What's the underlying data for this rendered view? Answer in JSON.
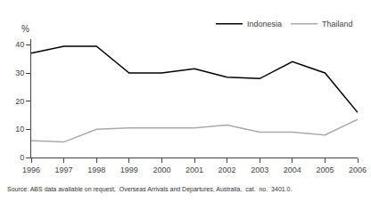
{
  "chart_data": {
    "type": "line",
    "x": [
      1996,
      1997,
      1998,
      1999,
      2000,
      2001,
      2002,
      2003,
      2004,
      2005,
      2006
    ],
    "series": [
      {
        "name": "Indonesia",
        "color": "#000000",
        "values": [
          37,
          39.5,
          39.5,
          30,
          30,
          31.5,
          28.5,
          28,
          34,
          30,
          16
        ]
      },
      {
        "name": "Thailand",
        "color": "#aaaaaa",
        "values": [
          6,
          5.5,
          10,
          10.5,
          10.5,
          10.5,
          11.5,
          9,
          9,
          8,
          13.5
        ]
      }
    ],
    "ylabel": "%",
    "xlim": [
      1996,
      2006
    ],
    "xticks": [
      1996,
      1997,
      1998,
      1999,
      2000,
      2001,
      2002,
      2003,
      2004,
      2005,
      2006
    ],
    "ylim": [
      0,
      42
    ],
    "yticks": [
      0,
      10,
      20,
      30,
      40
    ],
    "annotations": [
      "Source: ABS data available on request,  Overseas Arrivals and Departures, Australia,  cat.  no.  3401.0."
    ],
    "grid": false,
    "legend": "upper right"
  }
}
